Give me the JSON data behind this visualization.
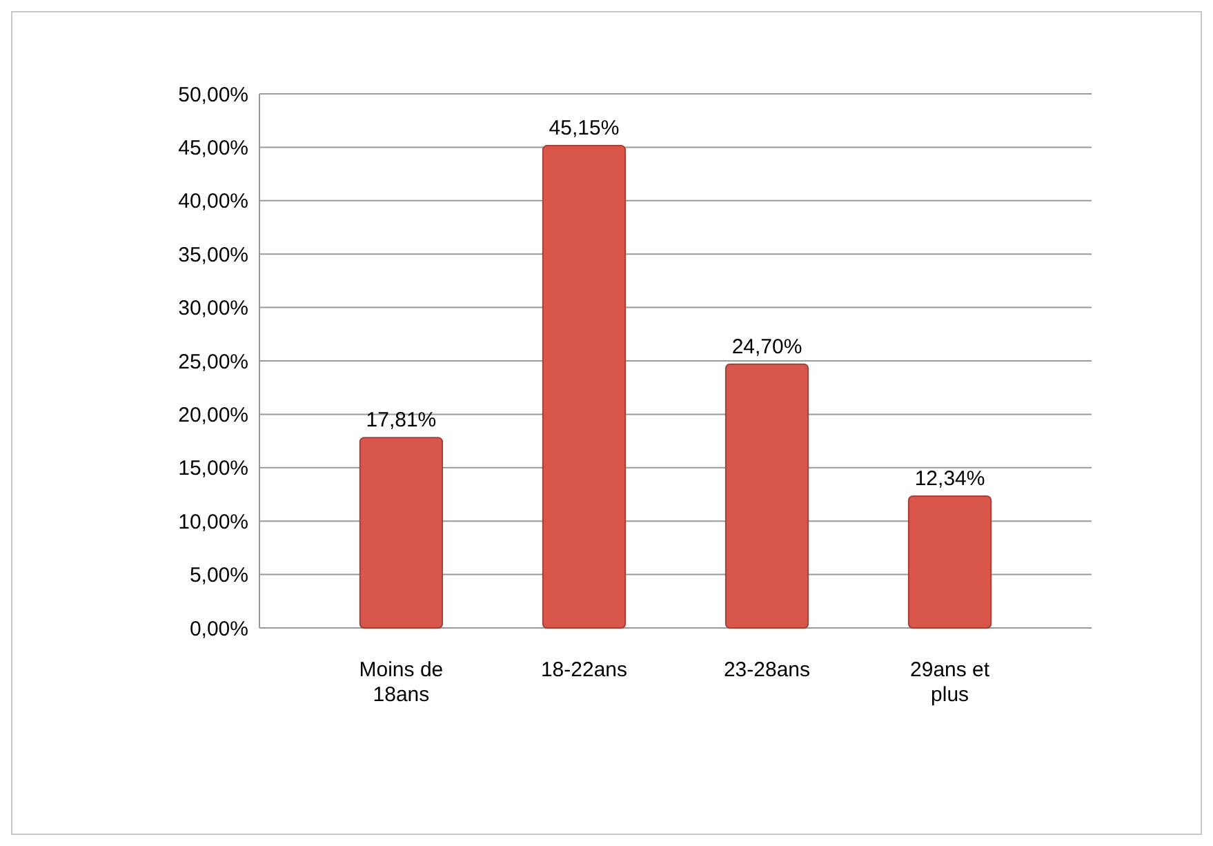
{
  "chart_data": {
    "type": "bar",
    "categories": [
      "Moins de 18ans",
      "18-22ans",
      "23-28ans",
      "29ans et plus"
    ],
    "values": [
      17.81,
      45.15,
      24.7,
      12.34
    ],
    "value_labels": [
      "17,81%",
      "45,15%",
      "24,70%",
      "12,34%"
    ],
    "color": "#d9574a",
    "ylim": [
      0,
      50
    ],
    "yticks": [
      {
        "value": 0,
        "label": "0,00%"
      },
      {
        "value": 5,
        "label": "5,00%"
      },
      {
        "value": 10,
        "label": "10,00%"
      },
      {
        "value": 15,
        "label": "15,00%"
      },
      {
        "value": 20,
        "label": "20,00%"
      },
      {
        "value": 25,
        "label": "25,00%"
      },
      {
        "value": 30,
        "label": "30,00%"
      },
      {
        "value": 35,
        "label": "35,00%"
      },
      {
        "value": 40,
        "label": "40,00%"
      },
      {
        "value": 45,
        "label": "45,00%"
      },
      {
        "value": 50,
        "label": "50,00%"
      }
    ],
    "grid": "y"
  }
}
